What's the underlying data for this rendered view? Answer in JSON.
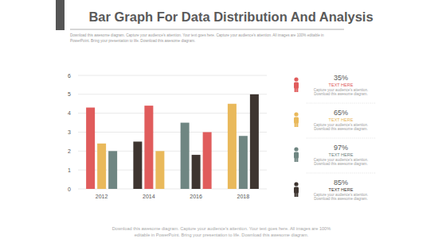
{
  "chart_data": {
    "type": "bar",
    "title": "Bar Graph For Data Distribution And Analysis",
    "subtitle": [
      "Download this awesome diagram. Capture your audience's attention. Your text goes here. Capture your audience's attention. All images are 100% editable in",
      "PowerPoint. Bring your presentation to life. Download this awesome diagram."
    ],
    "annotations": [
      "Download this awesome diagram. Capture your audience's attention. Your text goes here. All images are 100%",
      "editable in PowerPoint. Bring your presentation to life. Download this awesome diagram."
    ],
    "categories": [
      "2012",
      "2014",
      "2016",
      "2018"
    ],
    "series": [
      {
        "name": "TEXT HERE",
        "color": "#e05c5c",
        "values": [
          4.3,
          4.4,
          3.0,
          null
        ],
        "percent": 35,
        "percent_label": "35%",
        "description": [
          "Capture your audience's attention.",
          "Download this awesome diagram."
        ]
      },
      {
        "name": "TEXT HERE",
        "color": "#e9b95b",
        "values": [
          2.4,
          2.0,
          null,
          4.5
        ],
        "percent": 65,
        "percent_label": "65%",
        "description": [
          "Capture your audience's attention.",
          "Download this awesome diagram."
        ]
      },
      {
        "name": "TEXT HERE",
        "color": "#6f8682",
        "values": [
          2.0,
          null,
          3.5,
          2.8
        ],
        "percent": 97,
        "percent_label": "97%",
        "description": [
          "Capture your audience's attention.",
          "Download this awesome diagram."
        ]
      },
      {
        "name": "TEXT HERE",
        "color": "#3e3530",
        "values": [
          null,
          2.5,
          1.8,
          5.0
        ],
        "percent": 85,
        "percent_label": "85%",
        "description": [
          "Capture your audience's attention.",
          "Download this awesome diagram."
        ]
      }
    ],
    "ylim": [
      0,
      6
    ],
    "yticks": [
      0,
      1,
      2,
      3,
      4,
      5,
      6
    ],
    "grid": true,
    "legend": "right"
  }
}
